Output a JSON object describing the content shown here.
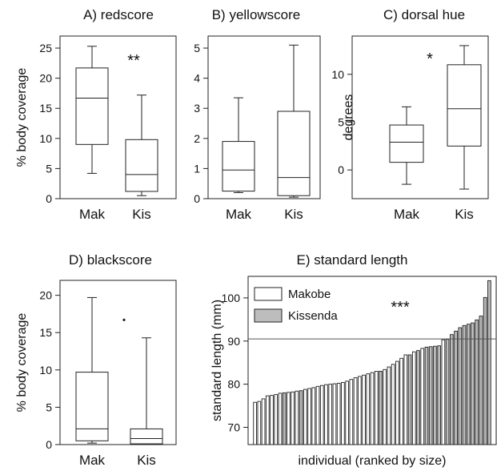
{
  "chart_data": [
    {
      "type": "boxplot",
      "panel": "A",
      "title": "A) redscore",
      "ylabel": "% body coverage",
      "ylim": [
        0,
        27
      ],
      "yticks": [
        0,
        5,
        10,
        15,
        20,
        25
      ],
      "categories": [
        "Mak",
        "Kis"
      ],
      "boxes": [
        {
          "whisker_low": 4.2,
          "q1": 9.0,
          "median": 16.7,
          "q3": 21.7,
          "whisker_high": 25.3
        },
        {
          "whisker_low": 0.5,
          "q1": 1.2,
          "median": 4.0,
          "q3": 9.8,
          "whisker_high": 17.2
        }
      ],
      "outliers": [],
      "significance": "**"
    },
    {
      "type": "boxplot",
      "panel": "B",
      "title": "B) yellowscore",
      "ylabel": "",
      "ylim": [
        0,
        5.4
      ],
      "yticks": [
        0,
        1,
        2,
        3,
        4,
        5
      ],
      "categories": [
        "Mak",
        "Kis"
      ],
      "boxes": [
        {
          "whisker_low": 0.2,
          "q1": 0.25,
          "median": 0.95,
          "q3": 1.9,
          "whisker_high": 3.35
        },
        {
          "whisker_low": 0.05,
          "q1": 0.1,
          "median": 0.7,
          "q3": 2.9,
          "whisker_high": 5.1
        }
      ],
      "outliers": [],
      "significance": ""
    },
    {
      "type": "boxplot",
      "panel": "C",
      "title": "C) dorsal hue",
      "ylabel": "degrees",
      "ylim": [
        -3,
        14
      ],
      "yticks": [
        0,
        5,
        10
      ],
      "categories": [
        "Mak",
        "Kis"
      ],
      "boxes": [
        {
          "whisker_low": -1.5,
          "q1": 0.8,
          "median": 2.9,
          "q3": 4.7,
          "whisker_high": 6.6
        },
        {
          "whisker_low": -2.0,
          "q1": 2.5,
          "median": 6.4,
          "q3": 11.0,
          "whisker_high": 13.0
        }
      ],
      "outliers": [],
      "significance": "*"
    },
    {
      "type": "boxplot",
      "panel": "D",
      "title": "D) blackscore",
      "ylabel": "% body coverage",
      "ylim": [
        0,
        22
      ],
      "yticks": [
        0,
        5,
        10,
        15,
        20
      ],
      "categories": [
        "Mak",
        "Kis"
      ],
      "boxes": [
        {
          "whisker_low": 0.2,
          "q1": 0.5,
          "median": 2.1,
          "q3": 9.7,
          "whisker_high": 19.7
        },
        {
          "whisker_low": 0.0,
          "q1": 0.1,
          "median": 0.8,
          "q3": 2.1,
          "whisker_high": 14.3
        }
      ],
      "outliers": [
        {
          "category": "Kis",
          "value": 16.7
        }
      ],
      "significance": ""
    },
    {
      "type": "bar",
      "panel": "E",
      "title": "E) standard length",
      "xlabel": "individual (ranked by size)",
      "ylabel": "standard length (mm)",
      "ylim": [
        66,
        105
      ],
      "yticks": [
        70,
        80,
        90,
        100
      ],
      "reference_line": 90.5,
      "series": [
        {
          "name": "Makobe",
          "color": "#ffffff",
          "values": [
            75.8,
            76.0,
            76.6,
            77.3,
            77.4,
            77.6,
            77.9,
            78.1,
            78.2,
            78.4,
            78.8,
            79.0,
            79.2,
            79.5,
            79.7,
            79.9,
            80.0,
            80.1,
            80.2,
            80.4,
            80.7,
            81.1,
            81.5,
            81.8,
            82.1,
            82.4,
            82.7,
            83.0,
            83.4,
            84.0,
            84.6,
            85.3,
            86.0,
            86.8,
            87.5,
            88.3,
            90.3
          ]
        },
        {
          "name": "Kissenda",
          "color": "#bdbdbd",
          "values": [
            78.0,
            78.5,
            83.0,
            86.8,
            87.8,
            88.6,
            88.7,
            88.8,
            88.9,
            90.4,
            91.5,
            92.3,
            93.1,
            93.6,
            93.9,
            94.2,
            94.9,
            95.8,
            100.1,
            104.0
          ]
        }
      ],
      "legend": [
        "Makobe",
        "Kissenda"
      ],
      "legend_position": "top-left",
      "significance": "***"
    }
  ]
}
